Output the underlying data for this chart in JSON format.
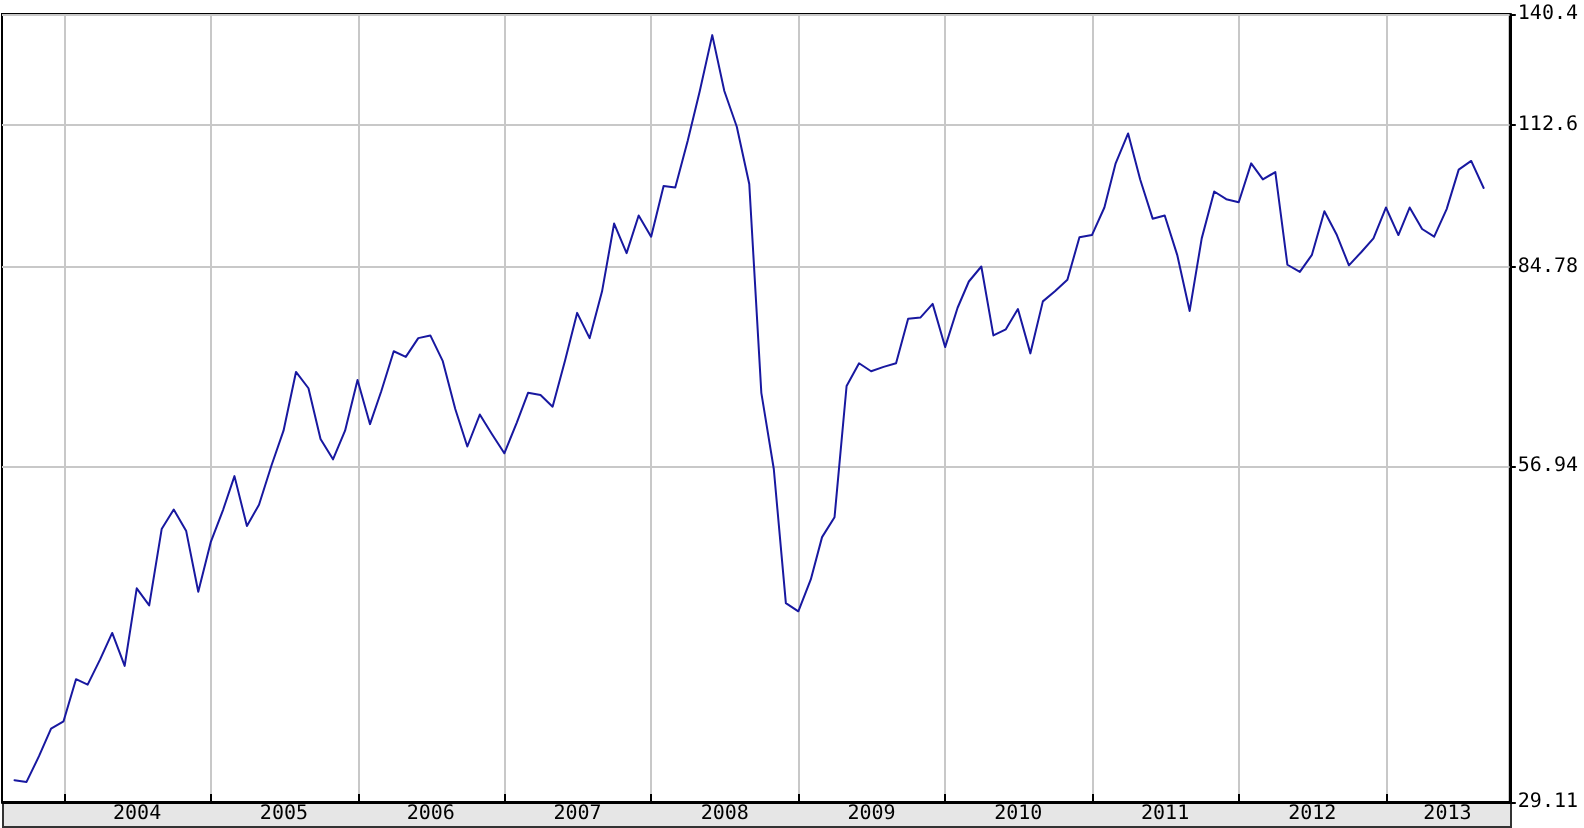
{
  "chart_data": {
    "type": "line",
    "color": "#1818a0",
    "log": true,
    "grid": true,
    "x": [
      "2003-09",
      "2003-10",
      "2003-11",
      "2003-12",
      "2004-01",
      "2004-02",
      "2004-03",
      "2004-04",
      "2004-05",
      "2004-06",
      "2004-07",
      "2004-08",
      "2004-09",
      "2004-10",
      "2004-11",
      "2004-12",
      "2005-01",
      "2005-02",
      "2005-03",
      "2005-04",
      "2005-05",
      "2005-06",
      "2005-07",
      "2005-08",
      "2005-09",
      "2005-10",
      "2005-11",
      "2005-12",
      "2006-01",
      "2006-02",
      "2006-03",
      "2006-04",
      "2006-05",
      "2006-06",
      "2006-07",
      "2006-08",
      "2006-09",
      "2006-10",
      "2006-11",
      "2006-12",
      "2007-01",
      "2007-02",
      "2007-03",
      "2007-04",
      "2007-05",
      "2007-06",
      "2007-07",
      "2007-08",
      "2007-09",
      "2007-10",
      "2007-11",
      "2007-12",
      "2008-01",
      "2008-02",
      "2008-03",
      "2008-04",
      "2008-05",
      "2008-06",
      "2008-07",
      "2008-08",
      "2008-09",
      "2008-10",
      "2008-11",
      "2008-12",
      "2009-01",
      "2009-02",
      "2009-03",
      "2009-04",
      "2009-05",
      "2009-06",
      "2009-07",
      "2009-08",
      "2009-09",
      "2009-10",
      "2009-11",
      "2009-12",
      "2010-01",
      "2010-02",
      "2010-03",
      "2010-04",
      "2010-05",
      "2010-06",
      "2010-07",
      "2010-08",
      "2010-09",
      "2010-10",
      "2010-11",
      "2010-12",
      "2011-01",
      "2011-02",
      "2011-03",
      "2011-04",
      "2011-05",
      "2011-06",
      "2011-07",
      "2011-08",
      "2011-09",
      "2011-10",
      "2011-11",
      "2011-12",
      "2012-01",
      "2012-02",
      "2012-03",
      "2012-04",
      "2012-05",
      "2012-06",
      "2012-07",
      "2012-08",
      "2012-09",
      "2012-10",
      "2012-11",
      "2012-12",
      "2013-01",
      "2013-02",
      "2013-03",
      "2013-04",
      "2013-05",
      "2013-06",
      "2013-07",
      "2013-08",
      "2013-09"
    ],
    "values": [
      30.4,
      30.3,
      31.9,
      33.7,
      34.2,
      37.2,
      36.8,
      38.7,
      40.8,
      38.2,
      44.6,
      43.1,
      50.2,
      52.2,
      50.0,
      44.3,
      48.9,
      52.2,
      55.8,
      50.5,
      52.7,
      57.0,
      61.1,
      68.7,
      66.5,
      60.1,
      57.7,
      61.1,
      67.6,
      61.9,
      66.1,
      71.6,
      70.8,
      73.5,
      73.9,
      70.2,
      63.8,
      59.2,
      63.1,
      60.7,
      58.4,
      62.1,
      65.9,
      65.6,
      64.1,
      70.3,
      77.3,
      73.5,
      80.7,
      92.4,
      87.1,
      93.9,
      90.0,
      99.6,
      99.3,
      109.0,
      120.4,
      134.6,
      120.4,
      112.1,
      100.0,
      65.9,
      56.6,
      43.3,
      42.6,
      45.4,
      49.4,
      51.4,
      66.8,
      69.9,
      68.8,
      69.4,
      69.9,
      76.4,
      76.6,
      78.7,
      72.2,
      78.1,
      82.3,
      84.8,
      73.9,
      74.8,
      77.9,
      71.3,
      79.1,
      80.7,
      82.6,
      89.9,
      90.3,
      95.4,
      104.2,
      110.6,
      100.9,
      93.3,
      93.9,
      86.8,
      77.6,
      89.7,
      98.5,
      97.0,
      96.4,
      104.2,
      100.9,
      102.4,
      85.1,
      83.9,
      86.8,
      94.7,
      90.3,
      85.0,
      87.3,
      89.7,
      95.4,
      90.3,
      95.4,
      91.4,
      90.0,
      95.1,
      102.9,
      104.7,
      99.2
    ],
    "xlim": [
      "2003-08-01",
      "2013-11-05"
    ],
    "xticks": [
      {
        "value": "2004-01-01",
        "label": null
      },
      {
        "value": "2004-07-02",
        "label": "2004"
      },
      {
        "value": "2005-01-01",
        "label": null
      },
      {
        "value": "2005-07-02",
        "label": "2005"
      },
      {
        "value": "2006-01-01",
        "label": null
      },
      {
        "value": "2006-07-02",
        "label": "2006"
      },
      {
        "value": "2007-01-01",
        "label": null
      },
      {
        "value": "2007-07-02",
        "label": "2007"
      },
      {
        "value": "2008-01-01",
        "label": null
      },
      {
        "value": "2008-07-02",
        "label": "2008"
      },
      {
        "value": "2009-01-01",
        "label": null
      },
      {
        "value": "2009-07-02",
        "label": "2009"
      },
      {
        "value": "2010-01-01",
        "label": null
      },
      {
        "value": "2010-07-02",
        "label": "2010"
      },
      {
        "value": "2011-01-01",
        "label": null
      },
      {
        "value": "2011-07-02",
        "label": "2011"
      },
      {
        "value": "2012-01-01",
        "label": null
      },
      {
        "value": "2012-07-02",
        "label": "2012"
      },
      {
        "value": "2013-01-01",
        "label": null
      },
      {
        "value": "2013-06-03",
        "label": "2013"
      }
    ],
    "ylim": [
      29.11,
      140.4
    ],
    "yticks": [
      29.11,
      56.94,
      84.78,
      112.6,
      140.4
    ]
  }
}
